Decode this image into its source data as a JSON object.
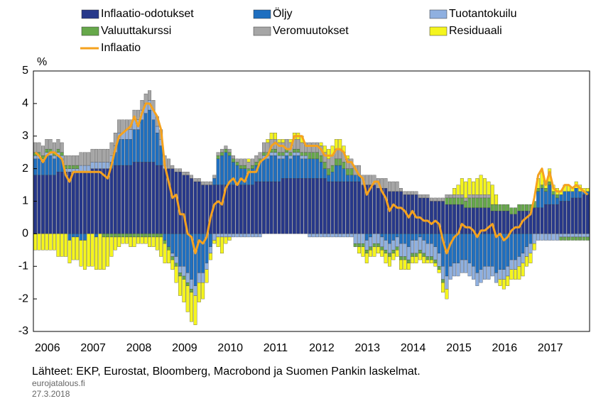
{
  "chart_data": {
    "type": "bar",
    "stacked": true,
    "y_unit_label": "%",
    "categories": [
      "2006",
      null,
      null,
      null,
      null,
      null,
      null,
      null,
      null,
      null,
      null,
      null,
      "2007",
      null,
      null,
      null,
      null,
      null,
      null,
      null,
      null,
      null,
      null,
      null,
      "2008",
      null,
      null,
      null,
      null,
      null,
      null,
      null,
      null,
      null,
      null,
      null,
      "2009",
      null,
      null,
      null,
      null,
      null,
      null,
      null,
      null,
      null,
      null,
      null,
      "2010",
      null,
      null,
      null,
      null,
      null,
      null,
      null,
      null,
      null,
      null,
      null,
      "2011",
      null,
      null,
      null,
      null,
      null,
      null,
      null,
      null,
      null,
      null,
      null,
      "2012",
      null,
      null,
      null,
      null,
      null,
      null,
      null,
      null,
      null,
      null,
      null,
      "2013",
      null,
      null,
      null,
      null,
      null,
      null,
      null,
      null,
      null,
      null,
      null,
      "2014",
      null,
      null,
      null,
      null,
      null,
      null,
      null,
      null,
      null,
      null,
      null,
      "2015",
      null,
      null,
      null,
      null,
      null,
      null,
      null,
      null,
      null,
      null,
      null,
      "2016",
      null,
      null,
      null,
      null,
      null,
      null,
      null,
      null,
      null,
      null,
      null,
      "2017",
      null,
      null,
      null,
      null,
      null,
      null,
      null,
      null,
      null,
      null,
      null,
      null,
      null
    ],
    "series": [
      {
        "name": "Inflaatio-odotukset",
        "color": "#27388a",
        "values": [
          1.8,
          1.8,
          1.8,
          1.8,
          1.8,
          1.8,
          1.9,
          1.9,
          1.9,
          1.9,
          1.9,
          1.9,
          1.9,
          1.9,
          1.9,
          2.0,
          2.0,
          2.0,
          2.0,
          2.0,
          2.0,
          2.1,
          2.1,
          2.1,
          2.1,
          2.1,
          2.2,
          2.2,
          2.2,
          2.2,
          2.2,
          2.2,
          2.1,
          2.1,
          2.0,
          2.0,
          2.0,
          1.9,
          1.9,
          1.8,
          1.8,
          1.7,
          1.6,
          1.6,
          1.5,
          1.5,
          1.5,
          1.5,
          1.5,
          1.5,
          1.5,
          1.5,
          1.5,
          1.5,
          1.5,
          1.5,
          1.5,
          1.5,
          1.6,
          1.6,
          1.6,
          1.6,
          1.6,
          1.6,
          1.6,
          1.7,
          1.7,
          1.7,
          1.7,
          1.7,
          1.7,
          1.7,
          1.7,
          1.7,
          1.7,
          1.7,
          1.7,
          1.6,
          1.6,
          1.6,
          1.6,
          1.6,
          1.6,
          1.6,
          1.6,
          1.6,
          1.5,
          1.5,
          1.5,
          1.5,
          1.4,
          1.4,
          1.4,
          1.3,
          1.3,
          1.3,
          1.3,
          1.2,
          1.2,
          1.2,
          1.2,
          1.1,
          1.1,
          1.1,
          1.0,
          1.0,
          1.0,
          1.0,
          0.9,
          0.9,
          0.9,
          0.9,
          0.9,
          0.8,
          0.8,
          0.8,
          0.8,
          0.8,
          0.8,
          0.8,
          0.7,
          0.7,
          0.7,
          0.7,
          0.7,
          0.6,
          0.6,
          0.7,
          0.7,
          0.7,
          0.7,
          0.8,
          0.8,
          0.8,
          0.9,
          0.9,
          0.9,
          0.9,
          1.0,
          1.0,
          1.0,
          1.1,
          1.1,
          1.1,
          1.2,
          1.2
        ]
      },
      {
        "name": "Öljy",
        "color": "#1f6fc0",
        "values": [
          0.5,
          0.5,
          0.4,
          0.6,
          0.6,
          0.5,
          0.5,
          0.4,
          0.0,
          -0.2,
          -0.1,
          -0.1,
          -0.2,
          -0.2,
          0.0,
          0.0,
          -0.1,
          0.0,
          0.0,
          0.0,
          0.2,
          0.4,
          0.8,
          0.8,
          0.8,
          0.8,
          1.0,
          1.0,
          1.3,
          1.5,
          1.6,
          1.3,
          1.0,
          0.6,
          -0.2,
          -0.4,
          -0.6,
          -0.7,
          -1.0,
          -1.0,
          -1.2,
          -1.4,
          -1.6,
          -1.2,
          -1.2,
          -0.9,
          -0.4,
          0.2,
          0.8,
          0.9,
          1.0,
          0.9,
          0.7,
          0.6,
          0.5,
          0.5,
          0.4,
          0.5,
          0.5,
          0.6,
          0.7,
          0.7,
          0.8,
          0.8,
          0.7,
          0.6,
          0.7,
          0.6,
          0.7,
          0.7,
          0.6,
          0.6,
          0.6,
          0.6,
          0.6,
          0.5,
          0.3,
          0.2,
          0.3,
          0.5,
          0.5,
          0.4,
          0.2,
          0.2,
          0.2,
          0.2,
          0.0,
          -0.2,
          -0.1,
          0.0,
          0.0,
          -0.1,
          -0.2,
          -0.3,
          -0.2,
          -0.1,
          -0.3,
          -0.3,
          -0.4,
          -0.2,
          -0.2,
          -0.1,
          -0.2,
          -0.3,
          -0.3,
          -0.4,
          -0.6,
          -1.0,
          -1.3,
          -1.0,
          -0.9,
          -0.9,
          -0.8,
          -0.8,
          -0.9,
          -1.0,
          -1.2,
          -1.1,
          -1.0,
          -1.0,
          -1.0,
          -1.2,
          -1.1,
          -1.1,
          -1.0,
          -0.8,
          -0.8,
          -0.7,
          -0.6,
          -0.4,
          -0.3,
          0.0,
          0.5,
          0.6,
          0.4,
          0.6,
          0.3,
          0.2,
          0.2,
          0.3,
          0.3,
          0.2,
          0.3,
          0.2,
          0.1,
          0.1
        ]
      },
      {
        "name": "Tuotantokuilu",
        "color": "#8fb0e0",
        "values": [
          0.1,
          0.1,
          0.1,
          0.1,
          0.1,
          0.1,
          0.1,
          0.1,
          0.1,
          0.1,
          0.1,
          0.1,
          0.2,
          0.2,
          0.2,
          0.2,
          0.2,
          0.2,
          0.2,
          0.2,
          0.2,
          0.2,
          0.2,
          0.2,
          0.3,
          0.3,
          0.3,
          0.3,
          0.3,
          0.3,
          0.3,
          0.3,
          0.2,
          0.2,
          0.1,
          0.0,
          -0.1,
          -0.2,
          -0.2,
          -0.3,
          -0.3,
          -0.3,
          -0.3,
          -0.3,
          -0.3,
          -0.2,
          -0.2,
          -0.2,
          -0.1,
          -0.1,
          -0.1,
          -0.1,
          -0.1,
          -0.1,
          -0.1,
          -0.1,
          -0.1,
          -0.1,
          -0.1,
          -0.1,
          0.1,
          0.1,
          0.1,
          0.1,
          0.1,
          0.1,
          0.1,
          0.1,
          0.1,
          0.1,
          0.1,
          0.1,
          -0.1,
          -0.1,
          -0.1,
          -0.1,
          -0.1,
          -0.1,
          -0.1,
          -0.1,
          -0.1,
          -0.1,
          -0.1,
          -0.1,
          -0.3,
          -0.3,
          -0.3,
          -0.3,
          -0.3,
          -0.3,
          -0.3,
          -0.3,
          -0.3,
          -0.3,
          -0.3,
          -0.3,
          -0.4,
          -0.4,
          -0.4,
          -0.4,
          -0.4,
          -0.4,
          -0.4,
          -0.4,
          -0.4,
          -0.4,
          -0.4,
          -0.4,
          -0.4,
          -0.4,
          -0.4,
          -0.4,
          -0.4,
          -0.4,
          -0.4,
          -0.4,
          -0.4,
          -0.4,
          -0.4,
          -0.4,
          -0.3,
          -0.3,
          -0.3,
          -0.3,
          -0.3,
          -0.3,
          -0.3,
          -0.3,
          -0.3,
          -0.3,
          -0.3,
          -0.3,
          -0.2,
          -0.2,
          -0.2,
          -0.2,
          -0.2,
          -0.2,
          -0.1,
          -0.1,
          -0.1,
          -0.1,
          -0.1,
          -0.1,
          -0.1,
          -0.1
        ]
      },
      {
        "name": "Valuuttakurssi",
        "color": "#66a84a",
        "values": [
          0.1,
          0.1,
          0.1,
          0.1,
          0.1,
          0.1,
          0.1,
          0.1,
          0.1,
          0.1,
          0.1,
          0.1,
          0.0,
          0.0,
          0.0,
          0.0,
          0.0,
          0.0,
          -0.1,
          -0.1,
          -0.1,
          -0.1,
          -0.1,
          -0.1,
          -0.1,
          -0.1,
          -0.1,
          -0.1,
          -0.1,
          -0.1,
          -0.1,
          -0.1,
          -0.1,
          -0.1,
          -0.1,
          -0.1,
          -0.1,
          -0.1,
          -0.1,
          -0.1,
          -0.1,
          -0.1,
          0.0,
          0.0,
          0.0,
          0.0,
          0.0,
          0.0,
          0.1,
          0.1,
          0.1,
          0.1,
          0.1,
          0.1,
          0.1,
          0.1,
          0.1,
          0.1,
          0.1,
          0.1,
          0.1,
          0.1,
          0.1,
          0.1,
          0.1,
          0.1,
          0.1,
          0.1,
          0.1,
          0.1,
          0.1,
          0.1,
          0.2,
          0.2,
          0.2,
          0.2,
          0.2,
          0.2,
          0.2,
          0.2,
          0.2,
          0.2,
          0.2,
          0.2,
          -0.1,
          -0.1,
          -0.1,
          -0.1,
          -0.1,
          -0.1,
          -0.1,
          -0.1,
          -0.1,
          -0.1,
          -0.1,
          -0.1,
          -0.1,
          -0.1,
          -0.1,
          -0.1,
          -0.1,
          -0.1,
          -0.1,
          -0.1,
          -0.1,
          -0.1,
          -0.1,
          -0.1,
          0.2,
          0.2,
          0.2,
          0.2,
          0.2,
          0.2,
          0.3,
          0.3,
          0.3,
          0.3,
          0.3,
          0.3,
          0.2,
          0.2,
          0.2,
          0.2,
          0.2,
          0.2,
          0.2,
          0.2,
          0.2,
          0.2,
          0.2,
          0.2,
          0.1,
          0.1,
          0.1,
          0.1,
          0.1,
          0.1,
          -0.1,
          -0.1,
          -0.1,
          -0.1,
          -0.1,
          -0.1,
          -0.1,
          -0.1
        ]
      },
      {
        "name": "Veromuutokset",
        "color": "#a6a6a6",
        "values": [
          0.3,
          0.3,
          0.3,
          0.3,
          0.3,
          0.3,
          0.3,
          0.3,
          0.3,
          0.3,
          0.3,
          0.3,
          0.4,
          0.4,
          0.4,
          0.4,
          0.4,
          0.4,
          0.4,
          0.4,
          0.4,
          0.4,
          0.4,
          0.4,
          0.3,
          0.3,
          0.3,
          0.3,
          0.3,
          0.3,
          0.3,
          0.3,
          0.3,
          0.3,
          0.3,
          0.3,
          0.1,
          0.1,
          0.1,
          0.1,
          0.1,
          0.1,
          0.1,
          0.1,
          0.1,
          0.1,
          0.1,
          0.1,
          0.1,
          0.1,
          0.1,
          0.1,
          0.1,
          0.1,
          0.2,
          0.2,
          0.2,
          0.2,
          0.2,
          0.2,
          0.3,
          0.3,
          0.3,
          0.3,
          0.3,
          0.3,
          0.3,
          0.3,
          0.3,
          0.3,
          0.3,
          0.3,
          0.3,
          0.3,
          0.3,
          0.3,
          0.3,
          0.3,
          0.3,
          0.3,
          0.3,
          0.3,
          0.3,
          0.3,
          0.3,
          0.3,
          0.3,
          0.3,
          0.3,
          0.3,
          0.3,
          0.3,
          0.3,
          0.3,
          0.3,
          0.3,
          0.1,
          0.1,
          0.1,
          0.1,
          0.1,
          0.1,
          0.1,
          0.1,
          0.1,
          0.1,
          0.1,
          0.1,
          0.1,
          0.1,
          0.1,
          0.1,
          0.1,
          0.1,
          0.1,
          0.1,
          0.1,
          0.1,
          0.1,
          0.1,
          0,
          0,
          0,
          0,
          0,
          0,
          0,
          0,
          0,
          0,
          0,
          0,
          0,
          0,
          0,
          0,
          0,
          0,
          0,
          0,
          0,
          0,
          0,
          0,
          0,
          0
        ]
      },
      {
        "name": "Residuaali",
        "color": "#f5f51e",
        "values": [
          -0.5,
          -0.5,
          -0.5,
          -0.5,
          -0.5,
          -0.5,
          -0.7,
          -0.7,
          -0.7,
          -0.7,
          -0.7,
          -0.7,
          -0.8,
          -0.9,
          -1.0,
          -1.0,
          -1.0,
          -1.1,
          -1.0,
          -0.9,
          -0.6,
          -0.4,
          -0.3,
          -0.2,
          -0.2,
          -0.3,
          -0.3,
          -0.2,
          -0.2,
          -0.2,
          -0.3,
          -0.3,
          -0.4,
          -0.6,
          -0.6,
          -0.4,
          -0.3,
          -0.5,
          -0.6,
          -0.7,
          -0.8,
          -0.9,
          -0.9,
          -0.6,
          -0.5,
          -0.4,
          -0.2,
          -0.1,
          -0.3,
          -0.5,
          -0.2,
          -0.1,
          0.0,
          0.0,
          0.0,
          0.0,
          0.1,
          0.0,
          0.0,
          0.0,
          0.0,
          0.1,
          0.2,
          0.2,
          0.1,
          0.1,
          0.0,
          0.1,
          0.2,
          0.2,
          0.2,
          0.0,
          0.0,
          0.0,
          0.0,
          0.1,
          0.2,
          0.3,
          0.3,
          0.3,
          0.3,
          0.2,
          0.1,
          0.0,
          0.0,
          -0.2,
          -0.3,
          -0.3,
          -0.2,
          -0.3,
          -0.2,
          -0.2,
          -0.3,
          -0.3,
          -0.2,
          -0.2,
          -0.3,
          -0.3,
          -0.2,
          -0.2,
          -0.2,
          -0.2,
          -0.2,
          -0.1,
          -0.1,
          -0.1,
          -0.1,
          -0.3,
          -0.3,
          0.0,
          0.2,
          0.3,
          0.5,
          0.5,
          0.5,
          0.4,
          0.5,
          0.6,
          0.5,
          0.4,
          0.6,
          0.3,
          -0.2,
          -0.3,
          -0.3,
          -0.3,
          -0.3,
          -0.4,
          -0.4,
          -0.3,
          -0.3,
          -0.2,
          0.3,
          0.4,
          0.2,
          0.4,
          0.2,
          0.2,
          0.1,
          0.2,
          0.2,
          0.1,
          0.2,
          0.2,
          0.1,
          0.1
        ]
      },
      {
        "name": "Inflaatio",
        "type": "line",
        "color": "#f5a21e",
        "values": [
          2.5,
          2.4,
          2.2,
          2.4,
          2.5,
          2.5,
          2.4,
          2.3,
          1.8,
          1.6,
          1.9,
          1.9,
          1.9,
          1.9,
          1.9,
          1.9,
          1.9,
          1.9,
          1.8,
          1.7,
          2.1,
          2.6,
          3.0,
          3.1,
          3.2,
          3.3,
          3.6,
          3.3,
          3.7,
          4.0,
          4.0,
          3.8,
          3.6,
          3.2,
          2.1,
          1.6,
          1.1,
          1.2,
          0.6,
          0.6,
          0.0,
          -0.1,
          -0.6,
          -0.2,
          -0.3,
          -0.1,
          0.5,
          0.9,
          1.0,
          0.9,
          1.4,
          1.6,
          1.7,
          1.5,
          1.7,
          1.6,
          1.9,
          1.9,
          1.9,
          2.2,
          2.3,
          2.4,
          2.7,
          2.8,
          2.7,
          2.7,
          2.6,
          2.6,
          3.0,
          3.0,
          3.0,
          2.7,
          2.7,
          2.7,
          2.7,
          2.6,
          2.4,
          2.4,
          2.4,
          2.6,
          2.6,
          2.5,
          2.2,
          2.2,
          2.0,
          1.8,
          1.7,
          1.2,
          1.4,
          1.6,
          1.6,
          1.3,
          1.1,
          0.7,
          0.9,
          0.8,
          0.8,
          0.7,
          0.5,
          0.7,
          0.5,
          0.5,
          0.4,
          0.4,
          0.3,
          0.4,
          0.3,
          -0.2,
          -0.6,
          -0.3,
          -0.1,
          0.0,
          0.3,
          0.2,
          0.2,
          0.1,
          -0.1,
          0.1,
          0.1,
          0.2,
          0.3,
          -0.1,
          0.0,
          -0.2,
          -0.1,
          0.1,
          0.2,
          0.2,
          0.4,
          0.5,
          0.6,
          1.1,
          1.8,
          2.0,
          1.5,
          1.9,
          1.4,
          1.3,
          1.3,
          1.5,
          1.5,
          1.4,
          1.5,
          1.4,
          1.3,
          1.2
        ]
      }
    ],
    "ylim": [
      -3,
      5
    ],
    "yticks": [
      -3,
      -2,
      -1,
      0,
      1,
      2,
      3,
      4,
      5
    ],
    "grid": false,
    "source": "Lähteet: EKP, Eurostat, Bloomberg, Macrobond ja Suomen Pankin laskelmat.",
    "site": "eurojatalous.fi",
    "date": "27.3.2018"
  }
}
